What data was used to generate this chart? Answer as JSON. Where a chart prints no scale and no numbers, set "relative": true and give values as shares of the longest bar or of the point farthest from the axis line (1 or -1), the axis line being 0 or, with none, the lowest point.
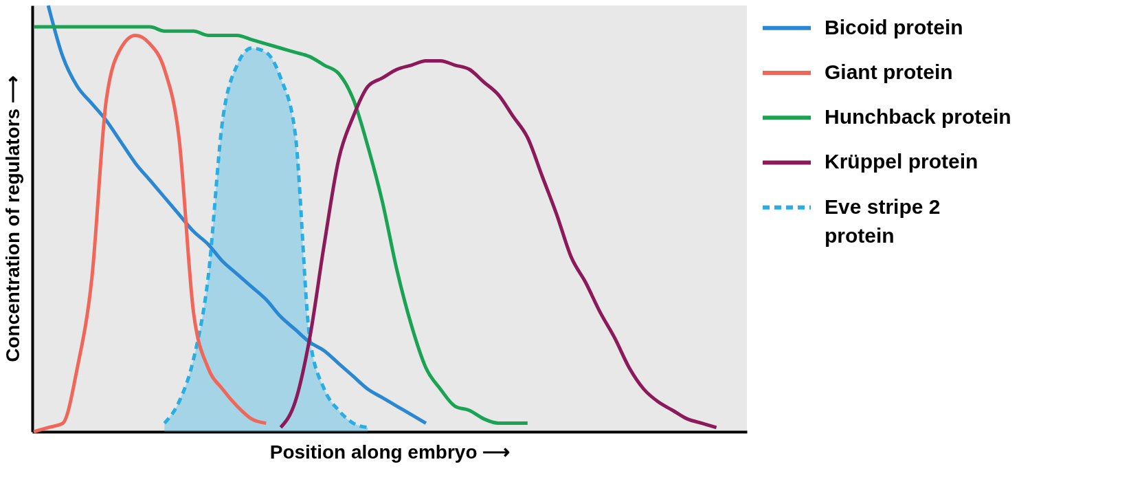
{
  "chart_data": {
    "type": "line",
    "relative": true,
    "xlabel": "Position along embryo ⟶",
    "ylabel": "Concentration of regulators ⟶",
    "legend": "right",
    "categories": [
      null,
      null,
      null,
      null,
      null,
      null,
      null,
      null,
      null,
      null,
      null,
      null,
      null,
      null,
      null,
      null,
      null,
      null,
      null,
      null,
      null,
      null,
      null,
      null,
      null,
      null,
      null,
      null,
      null,
      null,
      null,
      null,
      null,
      null,
      null,
      null,
      null,
      null,
      null,
      null,
      null,
      null,
      null,
      null,
      null,
      null,
      null,
      null,
      null,
      null
    ],
    "series": [
      {
        "name": "Bicoid protein",
        "color": "#2a87d3",
        "values": [
          null,
          1.0,
          0.88,
          0.81,
          0.77,
          0.73,
          0.68,
          0.63,
          0.59,
          0.55,
          0.51,
          0.47,
          0.44,
          0.4,
          0.37,
          0.34,
          0.31,
          0.27,
          0.24,
          0.21,
          0.19,
          0.16,
          0.13,
          0.1,
          0.08,
          0.06,
          0.04,
          0.02,
          null,
          null,
          null,
          null,
          null,
          null,
          null,
          null,
          null,
          null,
          null,
          null,
          null,
          null,
          null,
          null,
          null,
          null,
          null,
          null,
          null,
          null
        ]
      },
      {
        "name": "Giant protein",
        "color": "#f0675a",
        "values": [
          0.0,
          0.01,
          0.02,
          0.15,
          0.36,
          0.78,
          0.9,
          0.93,
          0.91,
          0.85,
          0.69,
          0.28,
          0.15,
          0.1,
          0.06,
          0.03,
          0.02,
          null,
          null,
          null,
          null,
          null,
          null,
          null,
          null,
          null,
          null,
          null,
          null,
          null,
          null,
          null,
          null,
          null,
          null,
          null,
          null,
          null,
          null,
          null,
          null,
          null,
          null,
          null,
          null,
          null,
          null,
          null,
          null,
          null
        ]
      },
      {
        "name": "Hunchback protein",
        "color": "#1aa352",
        "values": [
          0.95,
          0.95,
          0.95,
          0.95,
          0.95,
          0.95,
          0.95,
          0.95,
          0.95,
          0.94,
          0.94,
          0.94,
          0.93,
          0.93,
          0.93,
          0.92,
          0.91,
          0.9,
          0.89,
          0.88,
          0.86,
          0.84,
          0.78,
          0.67,
          0.54,
          0.38,
          0.25,
          0.15,
          0.1,
          0.06,
          0.05,
          0.03,
          0.02,
          0.02,
          0.02,
          null,
          null,
          null,
          null,
          null,
          null,
          null,
          null,
          null,
          null,
          null,
          null,
          null,
          null,
          null
        ]
      },
      {
        "name": "Krüppel protein",
        "color": "#8c1a5a",
        "values": [
          null,
          null,
          null,
          null,
          null,
          null,
          null,
          null,
          null,
          null,
          null,
          null,
          null,
          null,
          null,
          null,
          null,
          0.01,
          0.07,
          0.22,
          0.44,
          0.64,
          0.74,
          0.81,
          0.83,
          0.85,
          0.86,
          0.87,
          0.87,
          0.86,
          0.85,
          0.82,
          0.79,
          0.74,
          0.69,
          0.6,
          0.51,
          0.41,
          0.35,
          0.28,
          0.22,
          0.15,
          0.1,
          0.07,
          0.05,
          0.03,
          0.02,
          0.01,
          null,
          null
        ]
      },
      {
        "name": "Eve stripe 2 protein",
        "color": "#29aee4",
        "type": "area",
        "line_style": "dashed",
        "values": [
          null,
          null,
          null,
          null,
          null,
          null,
          null,
          null,
          null,
          0.02,
          0.07,
          0.17,
          0.36,
          0.73,
          0.86,
          0.9,
          0.89,
          0.83,
          0.7,
          0.22,
          0.1,
          0.05,
          0.02,
          0.01,
          null,
          null,
          null,
          null,
          null,
          null,
          null,
          null,
          null,
          null,
          null,
          null,
          null,
          null,
          null,
          null,
          null,
          null,
          null,
          null,
          null,
          null,
          null,
          null,
          null,
          null
        ]
      }
    ]
  }
}
